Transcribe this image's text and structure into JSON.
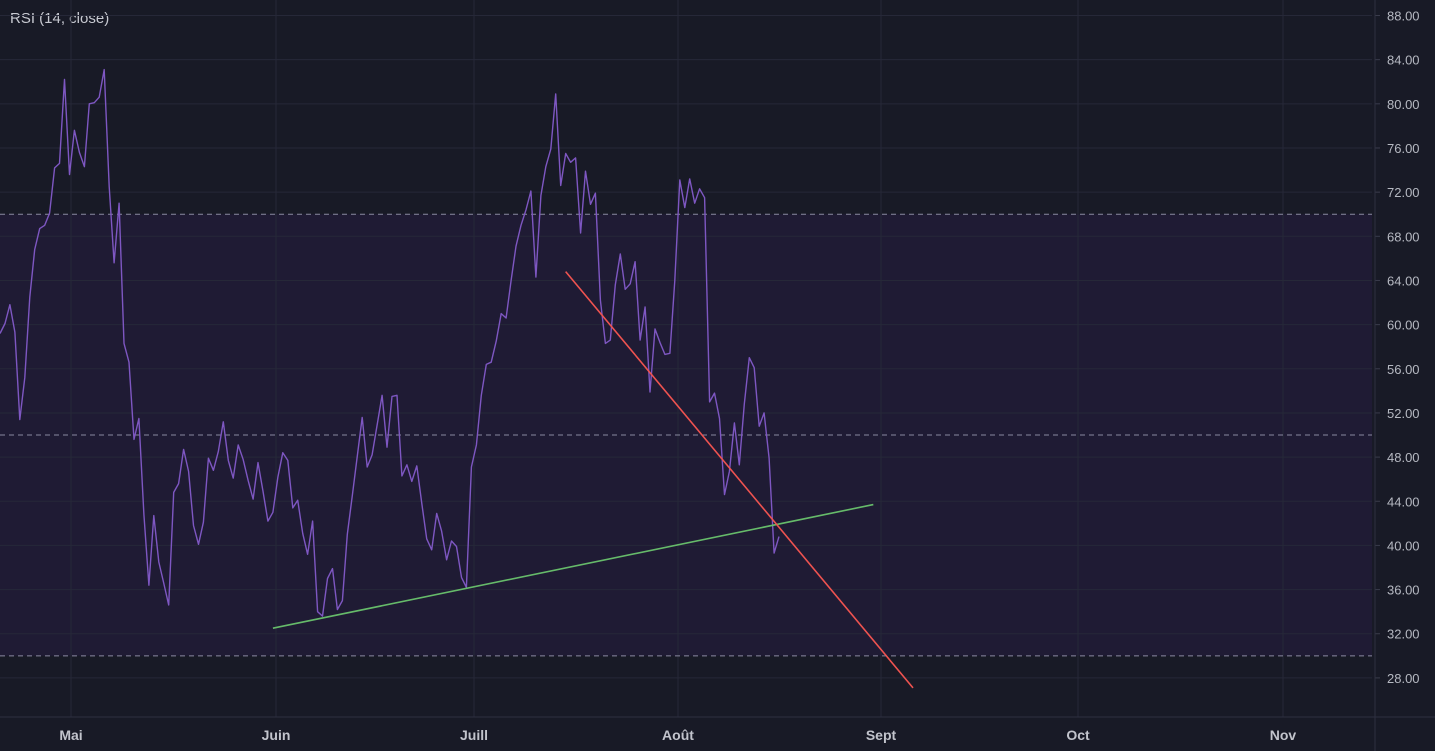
{
  "indicator_title": "RSI (14, close)",
  "chart_data": {
    "type": "line",
    "title": "RSI (14, close)",
    "x_labels": [
      "Mai",
      "Juin",
      "Juill",
      "Août",
      "Sept",
      "Oct",
      "Nov"
    ],
    "y_ticks": [
      "88.00",
      "84.00",
      "80.00",
      "76.00",
      "72.00",
      "68.00",
      "64.00",
      "60.00",
      "56.00",
      "52.00",
      "48.00",
      "44.00",
      "40.00",
      "36.00",
      "32.00",
      "28.00"
    ],
    "ylim": [
      26,
      89.5
    ],
    "reference_levels": {
      "upper": 70,
      "middle": 50,
      "lower": 30
    },
    "grid": true,
    "colors": {
      "background": "#181a26",
      "band": "#1f1b34",
      "rsi_line": "#7e57c2",
      "support_trendline": "#66bb6a",
      "resistance_trendline": "#ef5350",
      "grid": "#262838",
      "reference_dash": "#8a8aa0"
    },
    "series": [
      {
        "values": [
          59.2,
          60.1,
          61.8,
          59.3,
          51.4,
          55.2,
          62.5,
          66.8,
          68.7,
          69.0,
          70.1,
          74.2,
          74.6,
          82.2,
          73.6,
          77.6,
          75.6,
          74.3,
          80.0,
          80.1,
          80.6,
          83.1,
          72.5,
          65.6,
          71.0,
          58.3,
          56.6,
          49.6,
          51.5,
          42.8,
          36.4,
          42.7,
          38.5,
          36.6,
          34.6,
          44.8,
          45.6,
          48.7,
          46.7,
          41.8,
          40.1,
          42.1,
          47.9,
          46.8,
          48.5,
          51.2,
          47.7,
          46.1,
          49.1,
          47.8,
          45.9,
          44.2,
          47.5,
          44.9,
          42.2,
          43.0,
          46.2,
          48.4,
          47.7,
          43.4,
          44.1,
          41.1,
          39.2,
          42.2,
          34.0,
          33.6,
          37.0,
          37.9,
          34.2,
          35.0,
          41.0,
          44.5,
          48.1,
          51.6,
          47.1,
          48.2,
          50.9,
          53.6,
          48.9,
          53.5,
          53.6,
          46.3,
          47.3,
          45.8,
          47.2,
          43.8,
          40.6,
          39.6,
          42.9,
          41.3,
          38.7,
          40.4,
          39.9,
          37.1,
          36.2,
          47.1,
          49.1,
          53.6,
          56.4,
          56.6,
          58.5,
          61.0,
          60.6,
          64.0,
          67.1,
          69.0,
          70.4,
          72.1,
          64.3,
          71.7,
          74.3,
          75.9,
          80.9,
          72.6,
          75.5,
          74.7,
          75.1,
          68.3,
          73.9,
          70.9,
          71.9,
          62.2,
          58.3,
          58.6,
          63.6,
          66.4,
          63.2,
          63.7,
          65.7,
          58.6,
          61.6,
          53.9,
          59.6,
          58.4,
          57.3,
          57.4,
          64.0,
          73.1,
          70.6,
          73.2,
          71.0,
          72.3,
          71.5,
          53.0,
          53.8,
          51.5,
          44.6,
          46.7,
          51.1,
          47.3,
          52.8,
          57.0,
          56.1,
          50.8,
          52.0,
          47.9,
          39.3,
          40.8
        ]
      }
    ],
    "trendlines": [
      {
        "name": "support",
        "color": "#66bb6a",
        "start": {
          "x": 55,
          "y": 32.5
        },
        "end": {
          "x": 176,
          "y": 43.7
        }
      },
      {
        "name": "resistance",
        "color": "#ef5350",
        "start": {
          "x": 114,
          "y": 64.8
        },
        "end": {
          "x": 184,
          "y": 27.1
        }
      }
    ]
  }
}
